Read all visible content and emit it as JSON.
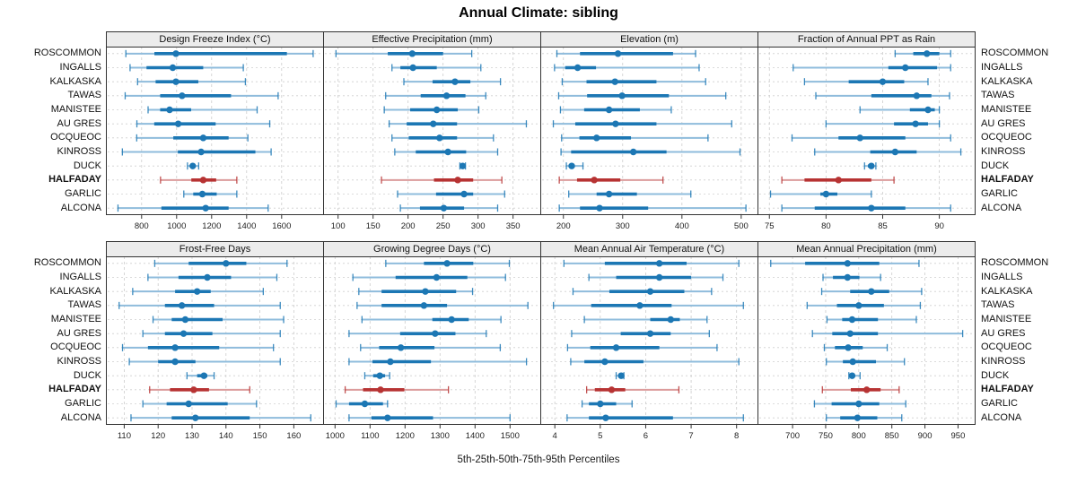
{
  "title": "Annual Climate: sibling",
  "caption": "5th-25th-50th-75th-95th Percentiles",
  "highlight_row": "HALFADAY",
  "percentile_levels": [
    5,
    25,
    50,
    75,
    95
  ],
  "rows": [
    "ROSCOMMON",
    "INGALLS",
    "KALKASKA",
    "TAWAS",
    "MANISTEE",
    "AU GRES",
    "OCQUEOC",
    "KINROSS",
    "DUCK",
    "HALFADAY",
    "GARLIC",
    "ALCONA"
  ],
  "colors": {
    "blue": "#1c77b4",
    "blue_light": "#8fbcdc",
    "red": "#b73333",
    "red_light": "#dc9c9c",
    "grid": "#cccccc",
    "border": "#333333",
    "header_bg": "#ececec"
  },
  "chart_data": [
    {
      "type": "dotplot-percentiles",
      "title": "Design Freeze Index (°C)",
      "xlim": [
        596,
        1842
      ],
      "ticks": [
        800,
        1000,
        1200,
        1400,
        1600
      ],
      "series": [
        {
          "name": "ROSCOMMON",
          "values": [
            710,
            873,
            996,
            1630,
            1780
          ]
        },
        {
          "name": "INGALLS",
          "values": [
            734,
            828,
            978,
            1152,
            1381
          ]
        },
        {
          "name": "KALKASKA",
          "values": [
            777,
            880,
            996,
            1124,
            1393
          ]
        },
        {
          "name": "TAWAS",
          "values": [
            706,
            906,
            1031,
            1311,
            1580
          ]
        },
        {
          "name": "MANISTEE",
          "values": [
            837,
            906,
            960,
            1083,
            1460
          ]
        },
        {
          "name": "AU GRES",
          "values": [
            773,
            872,
            1009,
            1223,
            1532
          ]
        },
        {
          "name": "OCQUEOC",
          "values": [
            772,
            981,
            1152,
            1297,
            1407
          ]
        },
        {
          "name": "KINROSS",
          "values": [
            690,
            1007,
            1140,
            1450,
            1540
          ]
        },
        {
          "name": "DUCK",
          "values": [
            1062,
            1078,
            1092,
            1108,
            1126
          ]
        },
        {
          "name": "HALFADAY",
          "values": [
            908,
            1084,
            1152,
            1226,
            1344
          ]
        },
        {
          "name": "GARLIC",
          "values": [
            1041,
            1095,
            1147,
            1229,
            1344
          ]
        },
        {
          "name": "ALCONA",
          "values": [
            665,
            913,
            1166,
            1297,
            1523
          ]
        }
      ]
    },
    {
      "type": "dotplot-percentiles",
      "title": "Effective Precipitation (mm)",
      "xlim": [
        78.6,
        390.2
      ],
      "ticks": [
        100,
        150,
        200,
        250,
        300,
        350
      ],
      "series": [
        {
          "name": "ROSCOMMON",
          "values": [
            97,
            171,
            206,
            250,
            291
          ]
        },
        {
          "name": "INGALLS",
          "values": [
            177,
            189,
            207,
            241,
            304
          ]
        },
        {
          "name": "KALKASKA",
          "values": [
            194,
            235,
            267,
            289,
            332
          ]
        },
        {
          "name": "TAWAS",
          "values": [
            168,
            218,
            255,
            282,
            311
          ]
        },
        {
          "name": "MANISTEE",
          "values": [
            166,
            203,
            241,
            271,
            301
          ]
        },
        {
          "name": "AU GRES",
          "values": [
            173,
            198,
            236,
            270,
            369
          ]
        },
        {
          "name": "OCQUEOC",
          "values": [
            177,
            201,
            245,
            270,
            322
          ]
        },
        {
          "name": "KINROSS",
          "values": [
            181,
            211,
            257,
            283,
            328
          ]
        },
        {
          "name": "DUCK",
          "values": [
            274,
            276,
            278,
            280,
            282
          ]
        },
        {
          "name": "HALFADAY",
          "values": [
            162,
            237,
            271,
            293,
            334
          ]
        },
        {
          "name": "GARLIC",
          "values": [
            185,
            240,
            280,
            293,
            338
          ]
        },
        {
          "name": "ALCONA",
          "values": [
            189,
            217,
            251,
            280,
            328
          ]
        }
      ]
    },
    {
      "type": "dotplot-percentiles",
      "title": "Elevation (m)",
      "xlim": [
        161,
        529
      ],
      "ticks": [
        200,
        300,
        400,
        500
      ],
      "series": [
        {
          "name": "ROSCOMMON",
          "values": [
            189,
            228,
            292,
            385,
            423
          ]
        },
        {
          "name": "INGALLS",
          "values": [
            185,
            203,
            224,
            255,
            429
          ]
        },
        {
          "name": "KALKASKA",
          "values": [
            198,
            239,
            287,
            357,
            440
          ]
        },
        {
          "name": "TAWAS",
          "values": [
            192,
            240,
            299,
            378,
            474
          ]
        },
        {
          "name": "MANISTEE",
          "values": [
            195,
            235,
            277,
            329,
            382
          ]
        },
        {
          "name": "AU GRES",
          "values": [
            183,
            220,
            288,
            357,
            484
          ]
        },
        {
          "name": "OCQUEOC",
          "values": [
            197,
            227,
            256,
            314,
            444
          ]
        },
        {
          "name": "KINROSS",
          "values": [
            196,
            213,
            318,
            374,
            498
          ]
        },
        {
          "name": "DUCK",
          "values": [
            205,
            209,
            214,
            219,
            233
          ]
        },
        {
          "name": "HALFADAY",
          "values": [
            193,
            223,
            252,
            296,
            368
          ]
        },
        {
          "name": "GARLIC",
          "values": [
            209,
            256,
            277,
            324,
            415
          ]
        },
        {
          "name": "ALCONA",
          "values": [
            193,
            228,
            261,
            343,
            508
          ]
        }
      ]
    },
    {
      "type": "dotplot-percentiles",
      "title": "Fraction of Annual PPT as Rain",
      "xlim": [
        73.95,
        93.2
      ],
      "ticks": [
        75,
        80,
        85,
        90
      ],
      "series": [
        {
          "name": "ROSCOMMON",
          "values": [
            86.1,
            87.7,
            88.9,
            90.0,
            91.0
          ]
        },
        {
          "name": "INGALLS",
          "values": [
            77.1,
            85.5,
            87.0,
            89.8,
            91.0
          ]
        },
        {
          "name": "KALKASKA",
          "values": [
            78.1,
            82.0,
            85.0,
            86.9,
            89.0
          ]
        },
        {
          "name": "TAWAS",
          "values": [
            79.1,
            84.0,
            88.0,
            89.3,
            90.9
          ]
        },
        {
          "name": "MANISTEE",
          "values": [
            83.0,
            87.4,
            89.0,
            89.6,
            90.0
          ]
        },
        {
          "name": "AU GRES",
          "values": [
            80.0,
            86.0,
            87.9,
            89.0,
            90.0
          ]
        },
        {
          "name": "OCQUEOC",
          "values": [
            77.0,
            81.1,
            83.0,
            87.0,
            91.0
          ]
        },
        {
          "name": "KINROSS",
          "values": [
            79.0,
            83.9,
            86.1,
            88.0,
            91.9
          ]
        },
        {
          "name": "DUCK",
          "values": [
            83.4,
            83.7,
            84.0,
            84.2,
            84.4
          ]
        },
        {
          "name": "HALFADAY",
          "values": [
            76.1,
            78.1,
            81.1,
            84.0,
            86.0
          ]
        },
        {
          "name": "GARLIC",
          "values": [
            75.1,
            79.5,
            80.0,
            81.0,
            84.0
          ]
        },
        {
          "name": "ALCONA",
          "values": [
            76.1,
            79.0,
            84.0,
            87.0,
            91.0
          ]
        }
      ]
    },
    {
      "type": "dotplot-percentiles",
      "title": "Frost-Free Days",
      "xlim": [
        104.6,
        168.9
      ],
      "ticks": [
        110,
        120,
        130,
        140,
        150,
        160
      ],
      "series": [
        {
          "name": "ROSCOMMON",
          "values": [
            119,
            129,
            140,
            146,
            158
          ]
        },
        {
          "name": "INGALLS",
          "values": [
            117,
            126,
            134.5,
            141.5,
            155
          ]
        },
        {
          "name": "KALKASKA",
          "values": [
            112.5,
            125,
            131.5,
            135.5,
            151
          ]
        },
        {
          "name": "TAWAS",
          "values": [
            108.5,
            122,
            127,
            136.5,
            156
          ]
        },
        {
          "name": "MANISTEE",
          "values": [
            118.5,
            124,
            128,
            139,
            157
          ]
        },
        {
          "name": "AU GRES",
          "values": [
            115.5,
            122,
            127.5,
            136,
            156
          ]
        },
        {
          "name": "OCQUEOC",
          "values": [
            109.5,
            117,
            125,
            138,
            154
          ]
        },
        {
          "name": "KINROSS",
          "values": [
            111.5,
            120,
            125,
            131,
            156
          ]
        },
        {
          "name": "DUCK",
          "values": [
            128.5,
            131.5,
            133.5,
            134.5,
            136.5
          ]
        },
        {
          "name": "HALFADAY",
          "values": [
            117.5,
            123.5,
            130.5,
            135,
            147
          ]
        },
        {
          "name": "GARLIC",
          "values": [
            115.5,
            122.5,
            129,
            140.5,
            149
          ]
        },
        {
          "name": "ALCONA",
          "values": [
            112,
            124,
            131,
            147,
            165
          ]
        }
      ]
    },
    {
      "type": "dotplot-percentiles",
      "title": "Growing Degree Days (°C)",
      "xlim": [
        965.9,
        1589
      ],
      "ticks": [
        1000,
        1100,
        1200,
        1300,
        1400,
        1500
      ],
      "series": [
        {
          "name": "ROSCOMMON",
          "values": [
            1145,
            1254,
            1320,
            1395,
            1498
          ]
        },
        {
          "name": "INGALLS",
          "values": [
            1051,
            1173,
            1290,
            1378,
            1487
          ]
        },
        {
          "name": "KALKASKA",
          "values": [
            1068,
            1133,
            1258,
            1346,
            1393
          ]
        },
        {
          "name": "TAWAS",
          "values": [
            1063,
            1133,
            1254,
            1320,
            1551
          ]
        },
        {
          "name": "MANISTEE",
          "values": [
            1077,
            1278,
            1333,
            1382,
            1474
          ]
        },
        {
          "name": "AU GRES",
          "values": [
            1040,
            1186,
            1286,
            1344,
            1432
          ]
        },
        {
          "name": "OCQUEOC",
          "values": [
            1073,
            1126,
            1188,
            1284,
            1472
          ]
        },
        {
          "name": "KINROSS",
          "values": [
            1040,
            1107,
            1158,
            1274,
            1547
          ]
        },
        {
          "name": "DUCK",
          "values": [
            1085,
            1109,
            1128,
            1143,
            1156
          ]
        },
        {
          "name": "HALFADAY",
          "values": [
            1029,
            1080,
            1130,
            1198,
            1324
          ]
        },
        {
          "name": "GARLIC",
          "values": [
            1003,
            1040,
            1085,
            1137,
            1150
          ]
        },
        {
          "name": "ALCONA",
          "values": [
            1040,
            1104,
            1150,
            1280,
            1500
          ]
        }
      ]
    },
    {
      "type": "dotplot-percentiles",
      "title": "Mean Annual Air Temperature (°C)",
      "xlim": [
        3.68,
        8.48
      ],
      "ticks": [
        4,
        5,
        6,
        7,
        8
      ],
      "series": [
        {
          "name": "ROSCOMMON",
          "values": [
            4.2,
            5.1,
            6.3,
            6.9,
            8.05
          ]
        },
        {
          "name": "INGALLS",
          "values": [
            4.75,
            5.35,
            6.3,
            7.0,
            7.7
          ]
        },
        {
          "name": "KALKASKA",
          "values": [
            4.4,
            5.2,
            6.1,
            6.85,
            7.45
          ]
        },
        {
          "name": "TAWAS",
          "values": [
            3.97,
            4.8,
            5.87,
            6.57,
            8.15
          ]
        },
        {
          "name": "MANISTEE",
          "values": [
            4.65,
            6.1,
            6.55,
            6.75,
            7.35
          ]
        },
        {
          "name": "AU GRES",
          "values": [
            4.37,
            5.45,
            6.1,
            6.55,
            7.4
          ]
        },
        {
          "name": "OCQUEOC",
          "values": [
            4.28,
            4.78,
            5.35,
            6.3,
            7.57
          ]
        },
        {
          "name": "KINROSS",
          "values": [
            4.35,
            4.65,
            5.1,
            5.95,
            8.05
          ]
        },
        {
          "name": "DUCK",
          "values": [
            5.35,
            5.43,
            5.46,
            5.49,
            5.52
          ]
        },
        {
          "name": "HALFADAY",
          "values": [
            4.7,
            4.88,
            5.25,
            5.55,
            6.73
          ]
        },
        {
          "name": "GARLIC",
          "values": [
            4.6,
            4.75,
            5.0,
            5.35,
            5.7
          ]
        },
        {
          "name": "ALCONA",
          "values": [
            4.27,
            4.75,
            5.12,
            6.6,
            8.15
          ]
        }
      ]
    },
    {
      "type": "dotplot-percentiles",
      "title": "Mean Annual Precipitation (mm)",
      "xlim": [
        647,
        976.5
      ],
      "ticks": [
        700,
        750,
        800,
        850,
        900,
        950
      ],
      "series": [
        {
          "name": "ROSCOMMON",
          "values": [
            667,
            719,
            783,
            831,
            891
          ]
        },
        {
          "name": "INGALLS",
          "values": [
            746,
            761,
            783,
            801,
            833
          ]
        },
        {
          "name": "KALKASKA",
          "values": [
            744,
            787,
            819,
            846,
            895
          ]
        },
        {
          "name": "TAWAS",
          "values": [
            722,
            767,
            800,
            838,
            893
          ]
        },
        {
          "name": "MANISTEE",
          "values": [
            752,
            775,
            790,
            829,
            887
          ]
        },
        {
          "name": "AU GRES",
          "values": [
            730,
            760,
            787,
            829,
            957
          ]
        },
        {
          "name": "OCQUEOC",
          "values": [
            748,
            764,
            784,
            806,
            843
          ]
        },
        {
          "name": "KINROSS",
          "values": [
            751,
            776,
            791,
            826,
            869
          ]
        },
        {
          "name": "DUCK",
          "values": [
            785,
            788,
            790,
            794,
            802
          ]
        },
        {
          "name": "HALFADAY",
          "values": [
            745,
            788,
            812,
            833,
            861
          ]
        },
        {
          "name": "GARLIC",
          "values": [
            733,
            759,
            800,
            831,
            871
          ]
        },
        {
          "name": "ALCONA",
          "values": [
            751,
            772,
            798,
            828,
            865
          ]
        }
      ]
    }
  ]
}
